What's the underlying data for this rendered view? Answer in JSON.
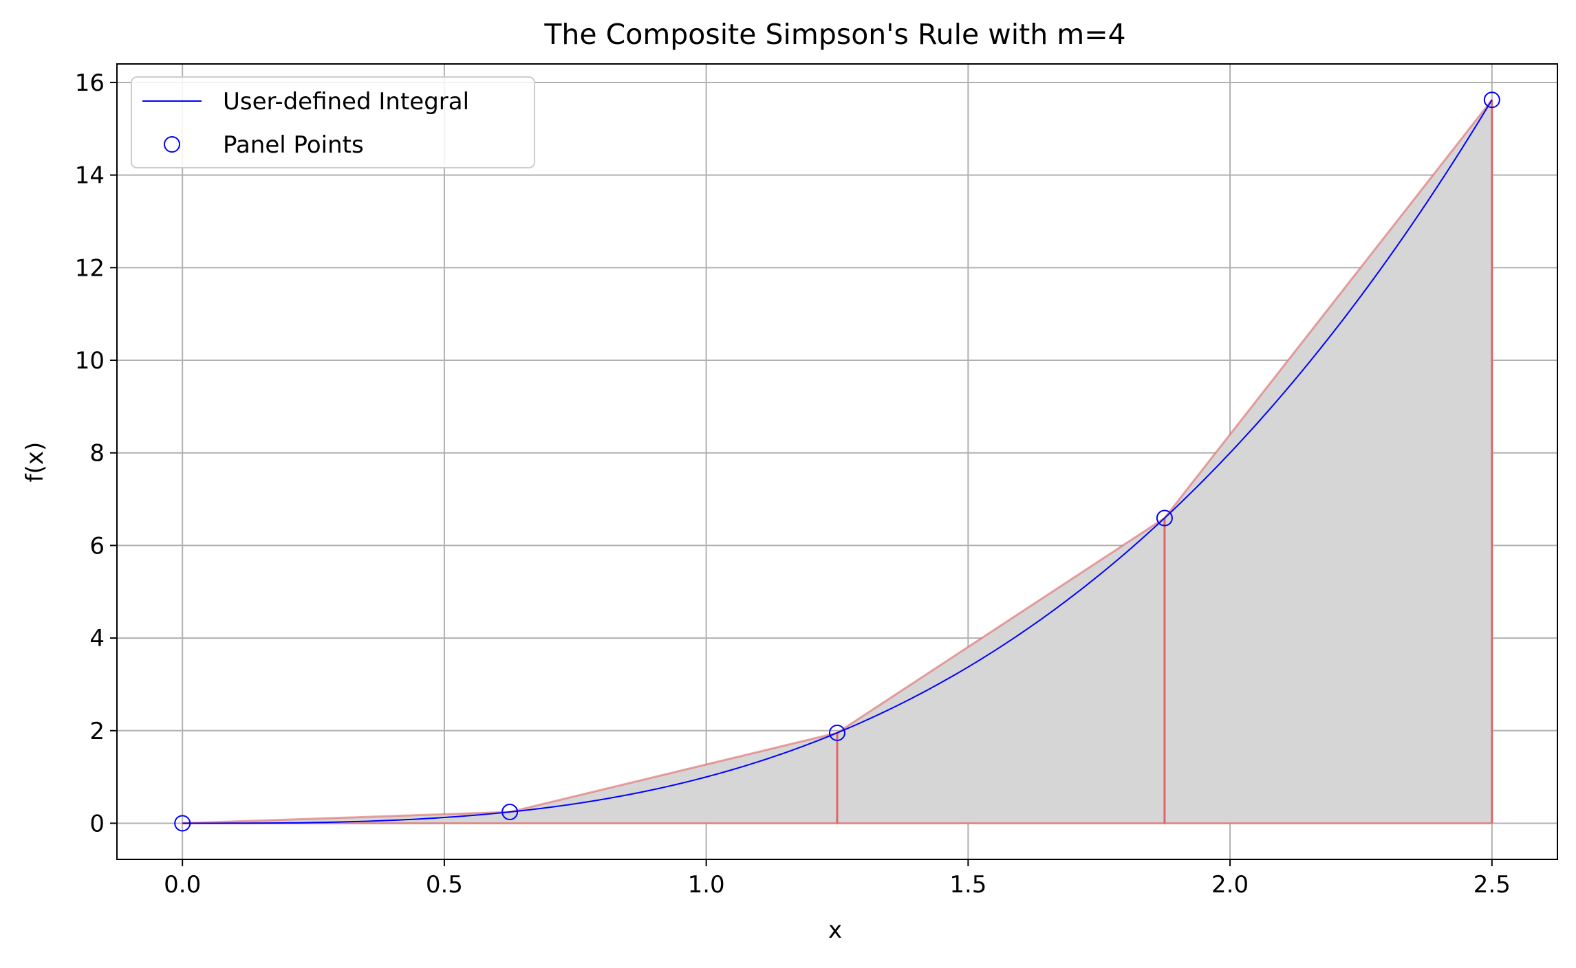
{
  "chart_data": {
    "type": "line",
    "title": "The Composite Simpson's Rule with m=4",
    "xlabel": "x",
    "ylabel": "f(x)",
    "xlim": [
      -0.125,
      2.625
    ],
    "ylim": [
      -0.78,
      16.4
    ],
    "grid": true,
    "legend_position": "top-left",
    "xticks": [
      "0.0",
      "0.5",
      "1.0",
      "1.5",
      "2.0",
      "2.5"
    ],
    "yticks": [
      "0",
      "2",
      "4",
      "6",
      "8",
      "10",
      "12",
      "14",
      "16"
    ],
    "xtick_values": [
      0.0,
      0.5,
      1.0,
      1.5,
      2.0,
      2.5
    ],
    "ytick_values": [
      0,
      2,
      4,
      6,
      8,
      10,
      12,
      14,
      16
    ],
    "series": [
      {
        "name": "User-defined Integral",
        "kind": "line",
        "color": "#0000ff",
        "function": "x^3",
        "domain": [
          0,
          2.5
        ]
      },
      {
        "name": "Panel Points",
        "kind": "markers",
        "color": "#0000ff",
        "x": [
          0.0,
          0.625,
          1.25,
          1.875,
          2.5
        ],
        "y": [
          0.0,
          0.244,
          1.953,
          6.592,
          15.625
        ]
      }
    ],
    "approximation": {
      "color": "#e06666",
      "fill_color": "#d6d6d6",
      "x": [
        0.0,
        0.625,
        1.25,
        1.875,
        2.5
      ],
      "y": [
        0.0,
        0.244,
        1.953,
        6.592,
        15.625
      ],
      "panel_edges": [
        1.25,
        1.875,
        2.5
      ]
    },
    "legend": [
      {
        "label": "User-defined Integral",
        "marker": "line"
      },
      {
        "label": "Panel Points",
        "marker": "circle"
      }
    ]
  }
}
